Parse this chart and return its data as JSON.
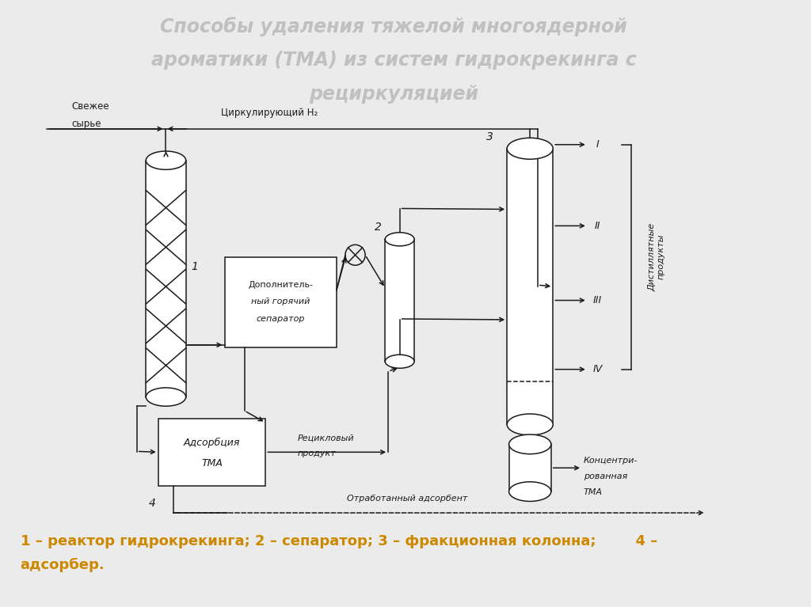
{
  "title_line1": "Способы удаления тяжелой многоядерной",
  "title_line2": "ароматики (ТМА) из систем гидрокрекинга с",
  "title_line3": "рециркуляцией",
  "title_color": "#c0c0c0",
  "title_fontsize": 17,
  "bg_color": "#ebebeb",
  "diagram_bg": "#ebebeb",
  "legend_text_1": "1 – реактор гидрокрекинга; 2 – сепаратор; 3 – фракционная колонна;        4 –",
  "legend_text_2": "адсорбер.",
  "legend_color": "#cc8800",
  "legend_fontsize": 13,
  "line_color": "#1a1a1a",
  "label_fontsize": 8.5
}
